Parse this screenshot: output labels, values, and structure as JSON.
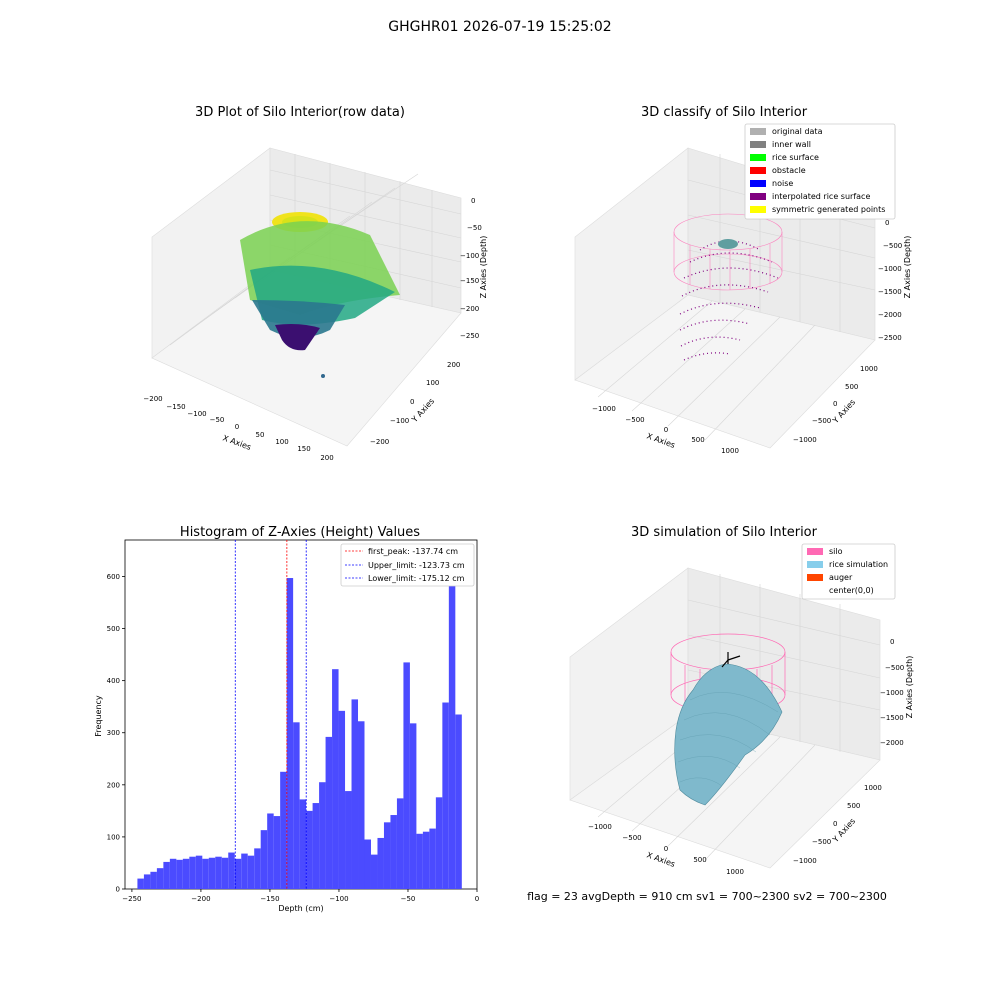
{
  "figure": {
    "title": "GHGHR01 2026-07-19 15:25:02",
    "footer": "flag = 23 avgDepth = 910 cm sv1 = 700~2300 sv2 = 700~2300"
  },
  "panels": {
    "raw": {
      "title": "3D Plot of Silo Interior(row data)",
      "xlabel": "X Axies",
      "ylabel": "Y Axies",
      "zlabel": "Z Axies (Depth)",
      "xticks": [
        "−200",
        "−150",
        "−100",
        "−50",
        "0",
        "50",
        "100",
        "150",
        "200"
      ],
      "yticks": [
        "200",
        "100",
        "0",
        "−100",
        "−200"
      ],
      "zticks": [
        "0",
        "−50",
        "−100",
        "−150",
        "−200",
        "−250"
      ]
    },
    "classify": {
      "title": "3D classify of Silo Interior",
      "xlabel": "X Axies",
      "ylabel": "Y Axies",
      "zlabel": "Z Axies (Depth)",
      "xticks": [
        "−1000",
        "−500",
        "0",
        "500",
        "1000"
      ],
      "yticks": [
        "1000",
        "500",
        "0",
        "−500",
        "−1000"
      ],
      "zticks": [
        "0",
        "−500",
        "−1000",
        "−1500",
        "−2000",
        "−2500"
      ],
      "legend": [
        {
          "label": "original data",
          "color": "#b0b0b0"
        },
        {
          "label": "inner wall",
          "color": "#808080"
        },
        {
          "label": "rice surface",
          "color": "#00ff00"
        },
        {
          "label": "obstacle",
          "color": "#ff0000"
        },
        {
          "label": "noise",
          "color": "#0000ff"
        },
        {
          "label": "interpolated rice surface",
          "color": "#800080"
        },
        {
          "label": "symmetric generated points",
          "color": "#ffff00"
        }
      ]
    },
    "simulation": {
      "title": "3D simulation of Silo Interior",
      "xlabel": "X Axies",
      "ylabel": "Y Axies",
      "zlabel": "Z Axies (Depth)",
      "xticks": [
        "−1000",
        "−500",
        "0",
        "500",
        "1000"
      ],
      "yticks": [
        "1000",
        "500",
        "0",
        "−500",
        "−1000"
      ],
      "zticks": [
        "0",
        "−500",
        "−1000",
        "−1500",
        "−2000"
      ],
      "legend": [
        {
          "label": "silo",
          "color": "#ff69b4"
        },
        {
          "label": "rice simulation",
          "color": "#87ceeb"
        },
        {
          "label": "auger",
          "color": "#ff4500"
        },
        {
          "label": "center(0,0)",
          "color": "#ffffff"
        }
      ]
    }
  },
  "chart_data": {
    "type": "bar",
    "title": "Histogram of Z-Axies (Height) Values",
    "xlabel": "Depth (cm)",
    "ylabel": "Frequency",
    "xlim": [
      -255,
      0
    ],
    "ylim": [
      0,
      670
    ],
    "xticks": [
      -250,
      -200,
      -150,
      -100,
      -50,
      0
    ],
    "xtick_labels": [
      "−250",
      "−200",
      "−150",
      "−100",
      "−50",
      "0"
    ],
    "yticks": [
      0,
      100,
      200,
      300,
      400,
      500,
      600
    ],
    "bar_color": "#4b4bff",
    "bin_start": -246,
    "bin_width": 4.7,
    "values": [
      20,
      28,
      33,
      40,
      52,
      58,
      56,
      58,
      62,
      64,
      58,
      60,
      62,
      60,
      70,
      58,
      68,
      64,
      78,
      113,
      145,
      140,
      225,
      597,
      320,
      172,
      150,
      165,
      205,
      292,
      422,
      342,
      188,
      364,
      322,
      95,
      66,
      98,
      128,
      142,
      174,
      435,
      318,
      106,
      110,
      116,
      176,
      358,
      635,
      335
    ],
    "vlines": [
      {
        "label": "first_peak: -137.74 cm",
        "x": -137.74,
        "color": "#ff0000"
      },
      {
        "label": "Upper_limit: -123.73 cm",
        "x": -123.73,
        "color": "#0000ff"
      },
      {
        "label": "Lower_limit: -175.12 cm",
        "x": -175.12,
        "color": "#0000ff"
      }
    ]
  }
}
